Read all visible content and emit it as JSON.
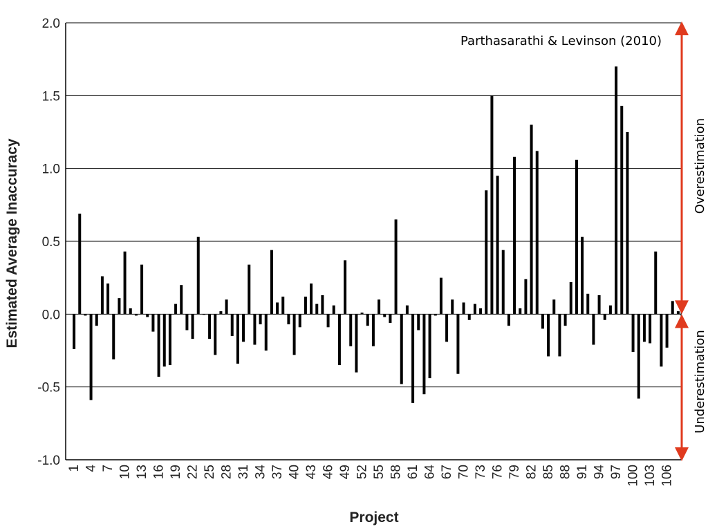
{
  "chart_data": {
    "type": "bar",
    "title": "",
    "credit": "Parthasarathi & Levinson (2010)",
    "xlabel": "Project",
    "ylabel": "Estimated Average Inaccuracy",
    "ylim": [
      -1.0,
      2.0
    ],
    "yticks": [
      "2.0",
      "1.5",
      "1.0",
      "0.5",
      "0.0",
      "-0.5",
      "-1.0"
    ],
    "xticks": [
      "1",
      "4",
      "7",
      "10",
      "13",
      "16",
      "19",
      "22",
      "25",
      "28",
      "31",
      "34",
      "37",
      "40",
      "43",
      "46",
      "49",
      "52",
      "55",
      "58",
      "61",
      "64",
      "67",
      "70",
      "73",
      "76",
      "79",
      "82",
      "85",
      "88",
      "91",
      "94",
      "97",
      "100",
      "103",
      "106"
    ],
    "grid": "horizontal",
    "annotations": {
      "over": "Overestimation",
      "under": "Underestimation",
      "arrow_color": "#e03a1e"
    },
    "bar_color": "#000000",
    "projects": [
      1,
      2,
      3,
      4,
      5,
      6,
      7,
      8,
      9,
      10,
      11,
      12,
      13,
      14,
      15,
      16,
      17,
      18,
      19,
      20,
      21,
      22,
      23,
      24,
      25,
      26,
      27,
      28,
      29,
      30,
      31,
      32,
      33,
      34,
      35,
      36,
      37,
      38,
      39,
      40,
      41,
      42,
      43,
      44,
      45,
      46,
      47,
      48,
      49,
      50,
      51,
      52,
      53,
      54,
      55,
      56,
      57,
      58,
      59,
      60,
      61,
      62,
      63,
      64,
      65,
      66,
      67,
      68,
      69,
      70,
      71,
      72,
      73,
      74,
      75,
      76,
      77,
      78,
      79,
      80,
      81,
      82,
      83,
      84,
      85,
      86,
      87,
      88,
      89,
      90,
      91,
      92,
      93,
      94,
      95,
      96,
      97,
      98,
      99,
      100,
      101,
      102,
      103,
      104,
      105,
      106,
      107,
      108
    ],
    "values": [
      -0.24,
      0.69,
      -0.01,
      -0.59,
      -0.08,
      0.26,
      0.21,
      -0.31,
      0.11,
      0.43,
      0.04,
      -0.01,
      0.34,
      -0.02,
      -0.12,
      -0.43,
      -0.36,
      -0.35,
      0.07,
      0.2,
      -0.11,
      -0.17,
      0.53,
      0.0,
      -0.17,
      -0.28,
      0.02,
      0.1,
      -0.15,
      -0.34,
      -0.19,
      0.34,
      -0.21,
      -0.07,
      -0.25,
      0.44,
      0.08,
      0.12,
      -0.07,
      -0.28,
      -0.09,
      0.12,
      0.21,
      0.07,
      0.13,
      -0.09,
      0.06,
      -0.35,
      0.37,
      -0.22,
      -0.4,
      0.01,
      -0.08,
      -0.22,
      0.1,
      -0.02,
      -0.06,
      0.65,
      -0.48,
      0.06,
      -0.61,
      -0.11,
      -0.55,
      -0.44,
      -0.01,
      0.25,
      -0.19,
      0.1,
      -0.41,
      0.08,
      -0.04,
      0.07,
      0.04,
      0.85,
      1.5,
      0.95,
      0.44,
      -0.08,
      1.08,
      0.04,
      0.24,
      1.3,
      1.12,
      -0.1,
      -0.29,
      0.1,
      -0.29,
      -0.08,
      0.22,
      1.06,
      0.53,
      0.14,
      -0.21,
      0.13,
      -0.04,
      0.06,
      1.7,
      1.43,
      1.25,
      -0.26,
      -0.58,
      -0.19,
      -0.2,
      0.43,
      -0.36,
      -0.23,
      0.09,
      0.02
    ]
  }
}
